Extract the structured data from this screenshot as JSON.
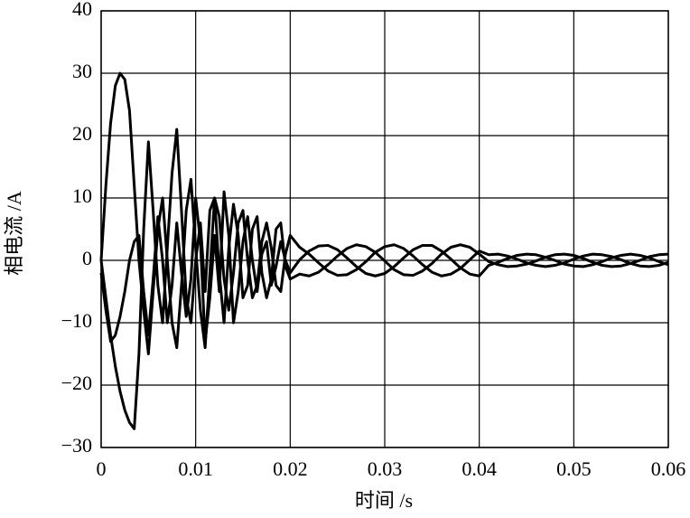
{
  "chart_data": {
    "type": "line",
    "xlabel": "时间 /s",
    "ylabel": "相电流 /A",
    "x": [
      0,
      0.0005,
      0.001,
      0.0015,
      0.002,
      0.0025,
      0.003,
      0.0035,
      0.004,
      0.0045,
      0.005,
      0.0055,
      0.006,
      0.0065,
      0.007,
      0.0075,
      0.008,
      0.0085,
      0.009,
      0.0095,
      0.01,
      0.0105,
      0.011,
      0.0115,
      0.012,
      0.0125,
      0.013,
      0.0135,
      0.014,
      0.0145,
      0.015,
      0.0155,
      0.016,
      0.0165,
      0.017,
      0.0175,
      0.018,
      0.0185,
      0.019,
      0.0195,
      0.02,
      0.021,
      0.022,
      0.023,
      0.024,
      0.025,
      0.026,
      0.027,
      0.028,
      0.029,
      0.03,
      0.031,
      0.032,
      0.033,
      0.034,
      0.035,
      0.036,
      0.037,
      0.038,
      0.039,
      0.04,
      0.041,
      0.042,
      0.043,
      0.044,
      0.045,
      0.046,
      0.047,
      0.048,
      0.049,
      0.05,
      0.051,
      0.052,
      0.053,
      0.054,
      0.055,
      0.056,
      0.057,
      0.058,
      0.059,
      0.06
    ],
    "series": [
      {
        "color": "#000000",
        "values": [
          0,
          12,
          22,
          28,
          30,
          29,
          24,
          12,
          0,
          -8,
          -15,
          -5,
          5,
          10,
          0,
          -10,
          -14,
          -4,
          8,
          13,
          2,
          -8,
          -14,
          -2,
          10,
          7,
          -3,
          -8,
          -2,
          6,
          8,
          0,
          -6,
          -4,
          3,
          6,
          2,
          -4,
          -5,
          1,
          4,
          2.1,
          1.0,
          -0.4,
          -1.7,
          -2.4,
          -2.3,
          -1.5,
          -0.2,
          1.3,
          2.2,
          2.5,
          1.9,
          0.7,
          -0.7,
          -1.9,
          -2.5,
          -2.2,
          -1.3,
          0.1,
          1.5,
          0.9,
          1.0,
          0.7,
          0.2,
          -0.4,
          -0.8,
          -1.0,
          -0.8,
          -0.4,
          0.2,
          0.7,
          1.0,
          0.9,
          0.6,
          0.1,
          -0.5,
          -0.9,
          -1.0,
          -0.8,
          -0.3
        ]
      },
      {
        "color": "#000000",
        "values": [
          0,
          -6,
          -12,
          -17,
          -21,
          -24,
          -26,
          -27,
          -15,
          5,
          19,
          8,
          -4,
          -10,
          2,
          14,
          21,
          8,
          -6,
          -10,
          0,
          6,
          -5,
          8,
          10,
          -2,
          -10,
          2,
          9,
          4,
          -6,
          -4,
          5,
          7,
          -2,
          -6,
          -3,
          5,
          6,
          -1,
          -3,
          -2.2,
          -2.5,
          -1.9,
          -0.7,
          0.7,
          1.9,
          2.5,
          2.2,
          1.3,
          -0.1,
          -1.5,
          -2.3,
          -2.4,
          -1.7,
          -0.5,
          1.0,
          2.1,
          2.5,
          2.1,
          1.0,
          -0.2,
          -0.7,
          -1.0,
          -0.9,
          -0.6,
          -0.1,
          0.5,
          0.9,
          1.0,
          0.8,
          0.3,
          -0.3,
          -0.8,
          -1.0,
          -0.9,
          -0.5,
          0.0,
          0.6,
          0.9,
          1.0
        ]
      },
      {
        "color": "#000000",
        "values": [
          -2,
          -8,
          -13,
          -12,
          -9,
          -5,
          0,
          3,
          4,
          -5,
          -12,
          -3,
          7,
          0,
          -10,
          -4,
          6,
          -2,
          -9,
          -3,
          10,
          3,
          -13,
          -6,
          4,
          -5,
          11,
          4,
          -10,
          -5,
          3,
          7,
          0,
          -5,
          1,
          3,
          -4,
          -1,
          3,
          0,
          -2,
          0.1,
          1.5,
          2.3,
          2.4,
          1.7,
          0.4,
          -1.0,
          -2.1,
          -2.5,
          -2.1,
          -1.0,
          0.4,
          1.7,
          2.4,
          2.4,
          1.5,
          0.2,
          -1.2,
          -2.2,
          -2.5,
          -0.8,
          -0.3,
          0.3,
          0.8,
          1.0,
          0.9,
          0.5,
          0.0,
          -0.6,
          -0.9,
          -1.0,
          -0.7,
          -0.2,
          0.4,
          0.8,
          1.0,
          0.8,
          0.4,
          -0.2,
          -0.7
        ]
      }
    ],
    "xlim": [
      0,
      0.06
    ],
    "xticks": [
      0,
      0.01,
      0.02,
      0.03,
      0.04,
      0.05,
      0.06
    ],
    "ylim": [
      -30,
      40
    ],
    "yticks": [
      {
        "value": -30,
        "label": "−30"
      },
      {
        "value": -20,
        "label": "−20"
      },
      {
        "value": -10,
        "label": "−10"
      },
      0,
      10,
      20,
      30,
      40
    ],
    "grid": true
  }
}
